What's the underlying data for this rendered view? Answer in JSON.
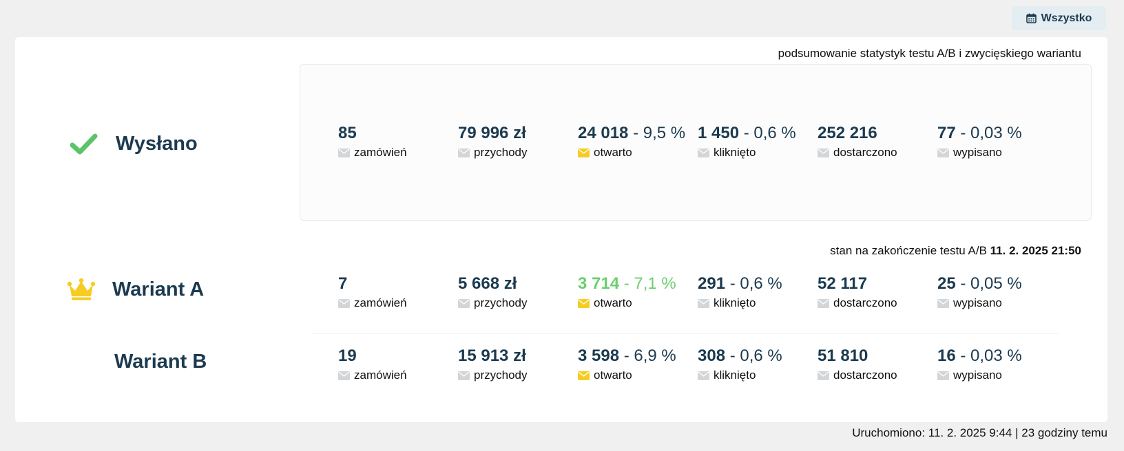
{
  "filter": {
    "label": "Wszystko",
    "icon": "calendar-icon"
  },
  "summary": {
    "caption": "podsumowanie statystyk testu A/B i zwycięskiego wariantu",
    "row_label": "Wysłano",
    "row_icon": "checkmark-icon",
    "stats": [
      {
        "value": "85",
        "pct": "",
        "label": "zamówień",
        "icon": "envelope-icon"
      },
      {
        "value": "79 996 zł",
        "pct": "",
        "label": "przychody",
        "icon": "envelope-icon"
      },
      {
        "value": "24 018",
        "pct": " - 9,5 %",
        "label": "otwarto",
        "icon": "envelope-icon"
      },
      {
        "value": "1 450",
        "pct": " - 0,6 %",
        "label": "kliknięto",
        "icon": "envelope-icon"
      },
      {
        "value": "252 216",
        "pct": "",
        "label": "dostarczono",
        "icon": "envelope-icon"
      },
      {
        "value": "77",
        "pct": " - 0,03 %",
        "label": "wypisano",
        "icon": "envelope-icon"
      }
    ]
  },
  "status": {
    "caption_prefix": "stan na zakończenie testu A/B ",
    "caption_date": "11. 2. 2025 21:50"
  },
  "variant_a": {
    "label": "Wariant A",
    "icon": "crown-icon",
    "stats": [
      {
        "value": "7",
        "pct": "",
        "label": "zamówień",
        "icon": "envelope-icon"
      },
      {
        "value": "5 668 zł",
        "pct": "",
        "label": "przychody",
        "icon": "envelope-icon"
      },
      {
        "value": "3 714",
        "pct": " - 7,1 %",
        "label": "otwarto",
        "icon": "envelope-icon"
      },
      {
        "value": "291",
        "pct": " - 0,6 %",
        "label": "kliknięto",
        "icon": "envelope-icon"
      },
      {
        "value": "52 117",
        "pct": "",
        "label": "dostarczono",
        "icon": "envelope-icon"
      },
      {
        "value": "25",
        "pct": " - 0,05 %",
        "label": "wypisano",
        "icon": "envelope-icon"
      }
    ]
  },
  "variant_b": {
    "label": "Wariant B",
    "stats": [
      {
        "value": "19",
        "pct": "",
        "label": "zamówień",
        "icon": "envelope-icon"
      },
      {
        "value": "15 913 zł",
        "pct": "",
        "label": "przychody",
        "icon": "envelope-icon"
      },
      {
        "value": "3 598",
        "pct": " - 6,9 %",
        "label": "otwarto",
        "icon": "envelope-icon"
      },
      {
        "value": "308",
        "pct": " - 0,6 %",
        "label": "kliknięto",
        "icon": "envelope-icon"
      },
      {
        "value": "51 810",
        "pct": "",
        "label": "dostarczono",
        "icon": "envelope-icon"
      },
      {
        "value": "16",
        "pct": " - 0,03 %",
        "label": "wypisano",
        "icon": "envelope-icon"
      }
    ]
  },
  "footer": {
    "text": "Uruchomiono: 11. 2. 2025 9:44 | 23 godziny temu"
  },
  "colors": {
    "primary_text": "#1c3a4f",
    "winner_green": "#6ccf6e",
    "open_highlight": "#f7cc22",
    "envelope_gray": "#d3d6d9",
    "crown_gold": "#f7cc22",
    "check_green": "#5cc466"
  }
}
